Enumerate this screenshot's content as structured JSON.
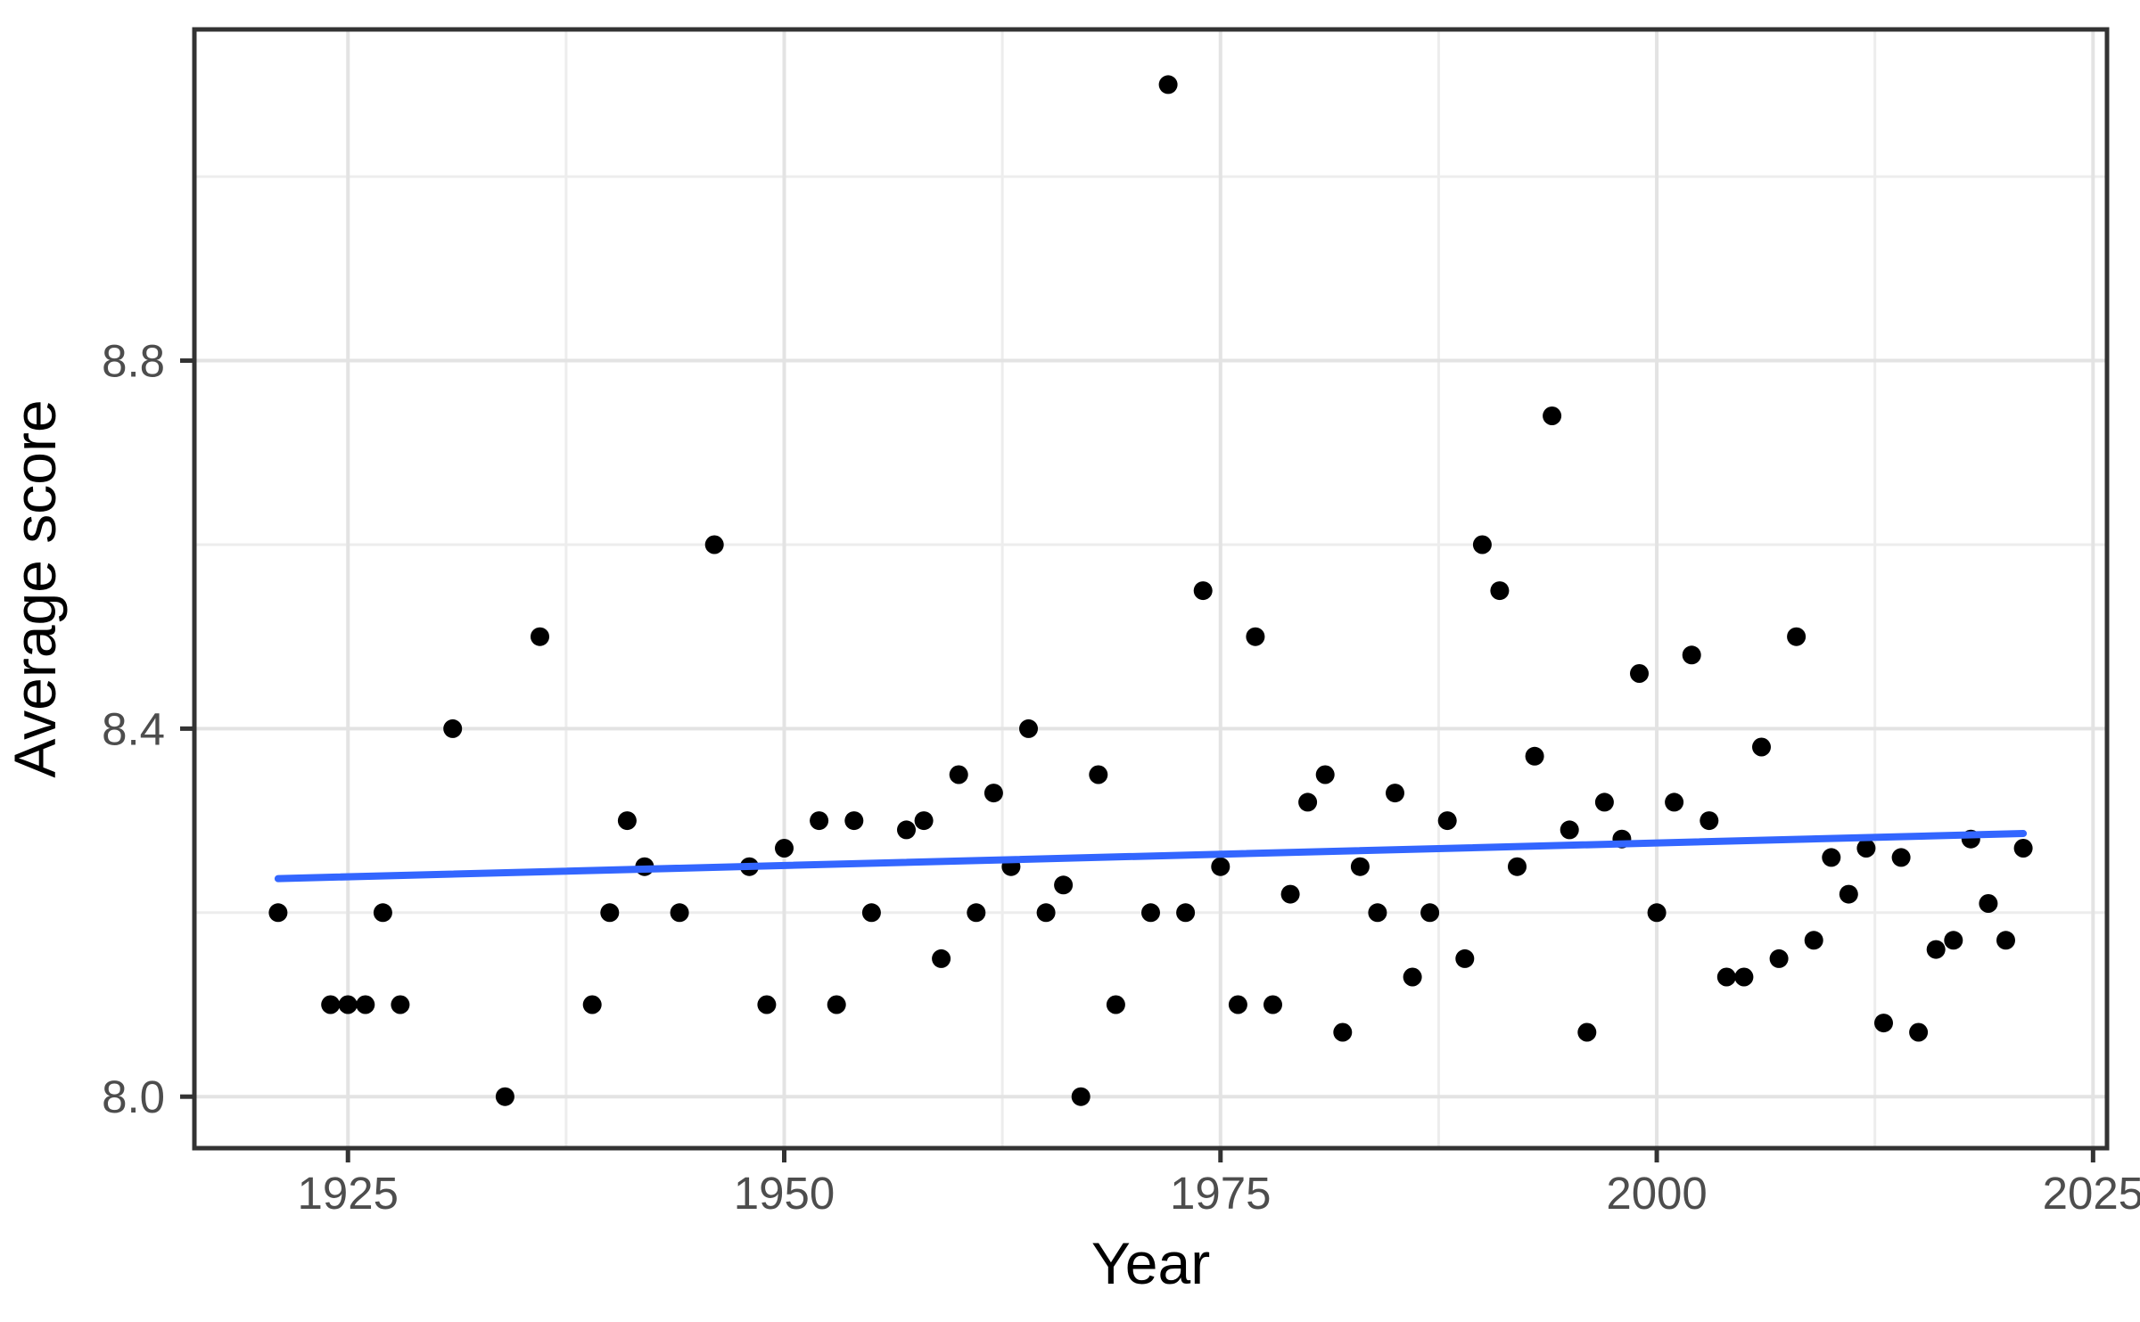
{
  "chart_data": {
    "type": "scatter",
    "title": "",
    "xlabel": "Year",
    "ylabel": "Average score",
    "x_ticks": [
      1925,
      1950,
      1975,
      2000,
      2025
    ],
    "x_tick_labels": [
      "1925",
      "1950",
      "1975",
      "2000",
      "2025"
    ],
    "x_minor_ticks": [
      1937.5,
      1962.5,
      1987.5,
      2012.5
    ],
    "y_ticks": [
      8.0,
      8.4,
      8.8
    ],
    "y_tick_labels": [
      "8.0",
      "8.4",
      "8.8"
    ],
    "y_minor_ticks": [
      8.2,
      8.6,
      9.0
    ],
    "xlim": [
      1916.2,
      2025.8
    ],
    "ylim": [
      7.944,
      9.16
    ],
    "grid": "on",
    "legend": "none",
    "points": [
      [
        1921,
        8.2
      ],
      [
        1924,
        8.1
      ],
      [
        1925,
        8.1
      ],
      [
        1926,
        8.1
      ],
      [
        1927,
        8.2
      ],
      [
        1928,
        8.1
      ],
      [
        1931,
        8.4
      ],
      [
        1934,
        8.0
      ],
      [
        1936,
        8.5
      ],
      [
        1939,
        8.1
      ],
      [
        1940,
        8.2
      ],
      [
        1941,
        8.3
      ],
      [
        1942,
        8.25
      ],
      [
        1944,
        8.2
      ],
      [
        1946,
        8.6
      ],
      [
        1948,
        8.25
      ],
      [
        1949,
        8.1
      ],
      [
        1950,
        8.27
      ],
      [
        1952,
        8.3
      ],
      [
        1953,
        8.1
      ],
      [
        1954,
        8.3
      ],
      [
        1955,
        8.2
      ],
      [
        1957,
        8.29
      ],
      [
        1958,
        8.3
      ],
      [
        1959,
        8.15
      ],
      [
        1960,
        8.35
      ],
      [
        1961,
        8.2
      ],
      [
        1962,
        8.33
      ],
      [
        1963,
        8.25
      ],
      [
        1964,
        8.4
      ],
      [
        1965,
        8.2
      ],
      [
        1966,
        8.23
      ],
      [
        1967,
        8.0
      ],
      [
        1968,
        8.35
      ],
      [
        1969,
        8.1
      ],
      [
        1971,
        8.2
      ],
      [
        1972,
        9.1
      ],
      [
        1973,
        8.2
      ],
      [
        1974,
        8.55
      ],
      [
        1975,
        8.25
      ],
      [
        1976,
        8.1
      ],
      [
        1977,
        8.5
      ],
      [
        1978,
        8.1
      ],
      [
        1979,
        8.22
      ],
      [
        1980,
        8.32
      ],
      [
        1981,
        8.35
      ],
      [
        1982,
        8.07
      ],
      [
        1983,
        8.25
      ],
      [
        1984,
        8.2
      ],
      [
        1985,
        8.33
      ],
      [
        1986,
        8.13
      ],
      [
        1987,
        8.2
      ],
      [
        1988,
        8.3
      ],
      [
        1989,
        8.15
      ],
      [
        1990,
        8.6
      ],
      [
        1991,
        8.55
      ],
      [
        1992,
        8.25
      ],
      [
        1993,
        8.37
      ],
      [
        1994,
        8.74
      ],
      [
        1995,
        8.29
      ],
      [
        1996,
        8.07
      ],
      [
        1997,
        8.32
      ],
      [
        1998,
        8.28
      ],
      [
        1999,
        8.46
      ],
      [
        2000,
        8.2
      ],
      [
        2001,
        8.32
      ],
      [
        2002,
        8.48
      ],
      [
        2003,
        8.3
      ],
      [
        2004,
        8.13
      ],
      [
        2005,
        8.13
      ],
      [
        2006,
        8.38
      ],
      [
        2007,
        8.15
      ],
      [
        2008,
        8.5
      ],
      [
        2009,
        8.17
      ],
      [
        2010,
        8.26
      ],
      [
        2011,
        8.22
      ],
      [
        2012,
        8.27
      ],
      [
        2013,
        8.08
      ],
      [
        2014,
        8.26
      ],
      [
        2015,
        8.07
      ],
      [
        2016,
        8.16
      ],
      [
        2017,
        8.17
      ],
      [
        2018,
        8.28
      ],
      [
        2019,
        8.21
      ],
      [
        2020,
        8.17
      ],
      [
        2021,
        8.27
      ]
    ],
    "trend_line": {
      "x1": 1921,
      "y1": 8.237,
      "x2": 2021,
      "y2": 8.286
    },
    "colors": {
      "background": "#FFFFFF",
      "panel_background": "#FFFFFF",
      "panel_border": "#333333",
      "grid_major": "#E3E3E3",
      "grid_minor": "#EDEDED",
      "tick_mark": "#333333",
      "tick_label": "#4D4D4D",
      "axis_title": "#000000",
      "point": "#000000",
      "trend": "#3366FF"
    }
  }
}
